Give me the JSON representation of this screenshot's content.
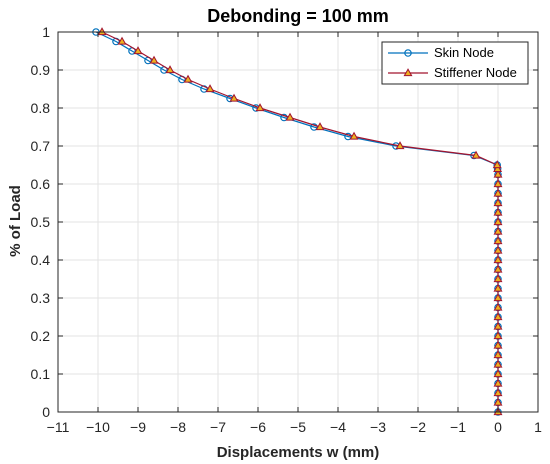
{
  "chart_data": {
    "type": "line",
    "title": "Debonding = 100 mm",
    "xlabel": "Displacements w (mm)",
    "ylabel": "% of Load",
    "xlim": [
      -11,
      1
    ],
    "ylim": [
      0,
      1
    ],
    "xticks": [
      -11,
      -10,
      -9,
      -8,
      -7,
      -6,
      -5,
      -4,
      -3,
      -2,
      -1,
      0,
      1
    ],
    "yticks": [
      0,
      0.1,
      0.2,
      0.3,
      0.4,
      0.5,
      0.6,
      0.7,
      0.8,
      0.9,
      1
    ],
    "grid": true,
    "legend_position": "top-right",
    "series": [
      {
        "name": "Skin Node",
        "color": "#0072BD",
        "marker": "circle",
        "x": [
          0,
          0,
          0,
          0,
          0,
          0,
          0,
          0,
          0,
          0,
          0,
          0,
          0,
          0,
          0,
          0,
          0,
          0,
          0,
          0,
          0,
          0,
          0,
          0,
          0,
          0,
          -0.01,
          -0.02,
          -0.6,
          -2.55,
          -3.75,
          -4.6,
          -5.35,
          -6.05,
          -6.7,
          -7.35,
          -7.9,
          -8.35,
          -8.75,
          -9.15,
          -9.55,
          -10.05
        ],
        "y": [
          0,
          0.025,
          0.05,
          0.075,
          0.1,
          0.125,
          0.15,
          0.175,
          0.2,
          0.225,
          0.25,
          0.275,
          0.3,
          0.325,
          0.35,
          0.375,
          0.4,
          0.425,
          0.45,
          0.475,
          0.5,
          0.525,
          0.55,
          0.575,
          0.6,
          0.625,
          0.64,
          0.65,
          0.675,
          0.7,
          0.725,
          0.75,
          0.775,
          0.8,
          0.825,
          0.85,
          0.875,
          0.9,
          0.925,
          0.95,
          0.975,
          1.0
        ]
      },
      {
        "name": "Stiffener Node",
        "color": "#A2142F",
        "marker": "triangle",
        "markerFill": "#EDB120",
        "x": [
          0,
          0,
          0,
          0,
          0,
          0,
          0,
          0,
          0,
          0,
          0,
          0,
          0,
          0,
          0,
          0,
          0,
          0,
          0,
          0,
          0,
          0,
          0,
          0,
          0,
          0,
          -0.01,
          -0.02,
          -0.55,
          -2.45,
          -3.6,
          -4.45,
          -5.2,
          -5.95,
          -6.6,
          -7.2,
          -7.75,
          -8.2,
          -8.6,
          -9.0,
          -9.4,
          -9.9
        ],
        "y": [
          0,
          0.025,
          0.05,
          0.075,
          0.1,
          0.125,
          0.15,
          0.175,
          0.2,
          0.225,
          0.25,
          0.275,
          0.3,
          0.325,
          0.35,
          0.375,
          0.4,
          0.425,
          0.45,
          0.475,
          0.5,
          0.525,
          0.55,
          0.575,
          0.6,
          0.625,
          0.64,
          0.65,
          0.675,
          0.7,
          0.725,
          0.75,
          0.775,
          0.8,
          0.825,
          0.85,
          0.875,
          0.9,
          0.925,
          0.95,
          0.975,
          1.0
        ]
      }
    ]
  }
}
